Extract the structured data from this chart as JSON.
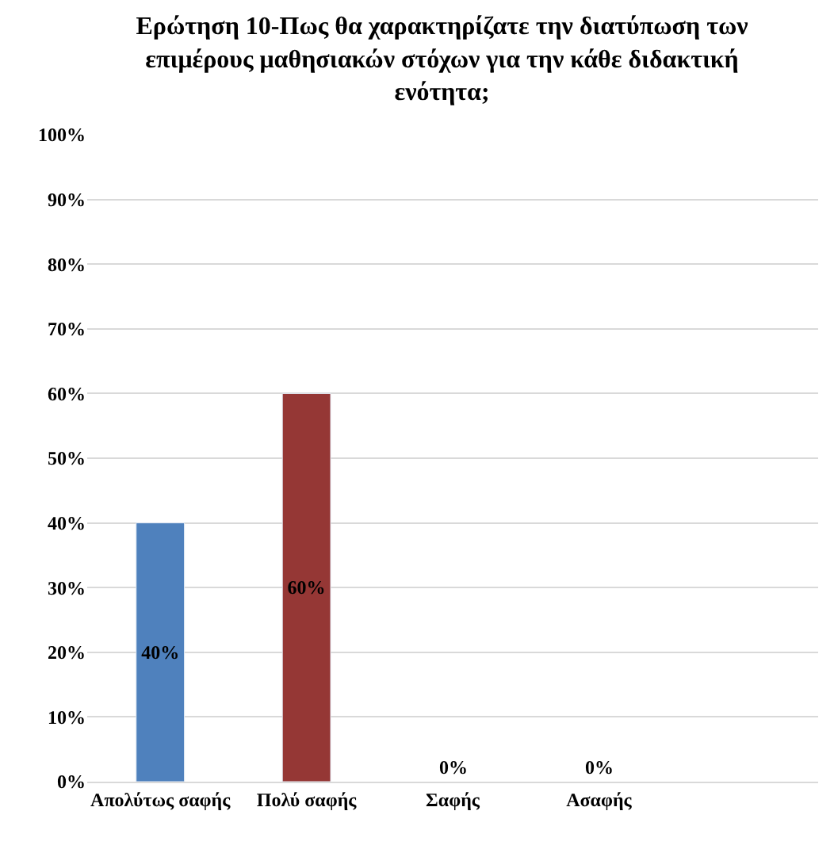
{
  "chart_data": {
    "type": "bar",
    "title": "Ερώτηση 10-Πως θα χαρακτηρίζατε την διατύπωση των\nεπιμέρους μαθησιακών στόχων για την κάθε διδακτική\nενότητα;",
    "categories": [
      "Απολύτως σαφής",
      "Πολύ σαφής",
      "Σαφής",
      "Ασαφής"
    ],
    "values": [
      40,
      60,
      0,
      0
    ],
    "colors": [
      "#4f81bd",
      "#953735",
      null,
      null
    ],
    "value_labels": [
      "40%",
      "60%",
      "0%",
      "0%"
    ],
    "ylim": [
      0,
      100
    ],
    "yticks": [
      {
        "value": 0,
        "label": "0%"
      },
      {
        "value": 10,
        "label": "10%"
      },
      {
        "value": 20,
        "label": "20%"
      },
      {
        "value": 30,
        "label": "30%"
      },
      {
        "value": 40,
        "label": "40%"
      },
      {
        "value": 50,
        "label": "50%"
      },
      {
        "value": 60,
        "label": "60%"
      },
      {
        "value": 70,
        "label": "70%"
      },
      {
        "value": 80,
        "label": "80%"
      },
      {
        "value": 90,
        "label": "90%"
      },
      {
        "value": 100,
        "label": "100%"
      }
    ],
    "grid": "y"
  }
}
